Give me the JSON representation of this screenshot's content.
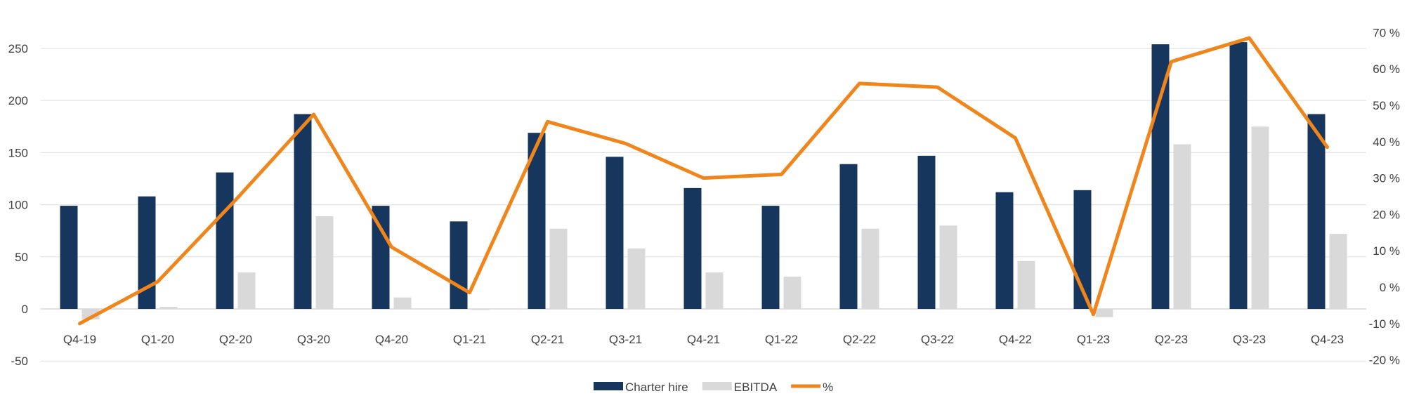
{
  "chart_data": {
    "type": "bar",
    "categories": [
      "Q4-19",
      "Q1-20",
      "Q2-20",
      "Q3-20",
      "Q4-20",
      "Q1-21",
      "Q2-21",
      "Q3-21",
      "Q4-21",
      "Q1-22",
      "Q2-22",
      "Q3-22",
      "Q4-22",
      "Q1-23",
      "Q2-23",
      "Q3-23",
      "Q4-23"
    ],
    "series": [
      {
        "name": "Charter hire",
        "kind": "bar",
        "axis": "left",
        "color": "#17365d",
        "values": [
          99,
          108,
          131,
          187,
          99,
          84,
          169,
          146,
          116,
          99,
          139,
          147,
          112,
          114,
          254,
          256,
          187
        ]
      },
      {
        "name": "EBITDA",
        "kind": "bar",
        "axis": "left",
        "color": "#d9d9d9",
        "values": [
          -10,
          2,
          35,
          89,
          11,
          -1,
          77,
          58,
          35,
          31,
          77,
          80,
          46,
          -8,
          158,
          175,
          72
        ]
      },
      {
        "name": "%",
        "kind": "line",
        "axis": "right",
        "color": "#f0851b",
        "values": [
          -10,
          1.5,
          24,
          47.5,
          11,
          -1.5,
          45.5,
          39.5,
          30,
          31,
          56,
          55,
          41,
          -7.5,
          62,
          68.5,
          38.5
        ]
      }
    ],
    "left_axis": {
      "ylim": [
        -50,
        250
      ],
      "ticks": [
        -50,
        0,
        50,
        100,
        150,
        200,
        250
      ],
      "tick_labels": [
        "-50",
        "0",
        "50",
        "100",
        "150",
        "200",
        "250"
      ]
    },
    "right_axis": {
      "ylim": [
        -20,
        70
      ],
      "ticks": [
        -20,
        -10,
        0,
        10,
        20,
        30,
        40,
        50,
        60,
        70
      ],
      "tick_labels": [
        "-20 %",
        "-10 %",
        "0 %",
        "10 %",
        "20 %",
        "30 %",
        "40 %",
        "50 %",
        "60 %",
        "70 %"
      ]
    },
    "grid": true,
    "legend": {
      "position": "bottom-center",
      "entries": [
        "Charter hire",
        "EBITDA",
        "%"
      ]
    }
  }
}
